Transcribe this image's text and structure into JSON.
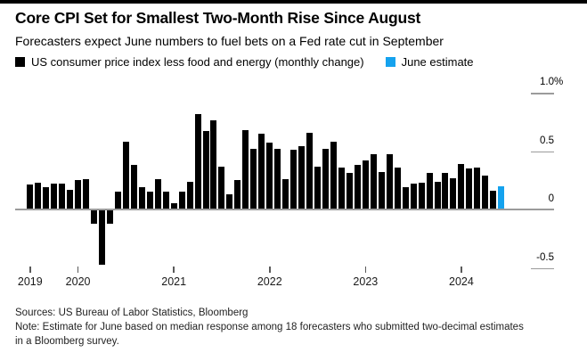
{
  "header": {
    "title": "Core CPI Set for Smallest Two-Month Rise Since August",
    "subtitle": "Forecasters expect June numbers to fuel bets on a Fed rate cut in September"
  },
  "legend": {
    "items": [
      {
        "label": "US consumer price index less food and energy (monthly change)",
        "color": "#000000"
      },
      {
        "label": "June estimate",
        "color": "#15a2ee"
      }
    ]
  },
  "chart_data": {
    "type": "bar",
    "title": "Core CPI Set for Smallest Two-Month Rise Since August",
    "subtitle": "Forecasters expect June numbers to fuel bets on a Fed rate cut in September",
    "unit": "percent, monthly change",
    "grid": "off",
    "legend_position": "top-left",
    "ylim": [
      -0.5,
      1.0
    ],
    "categories": [
      "2019-07",
      "2019-08",
      "2019-09",
      "2019-10",
      "2019-11",
      "2019-12",
      "2020-01",
      "2020-02",
      "2020-03",
      "2020-04",
      "2020-05",
      "2020-06",
      "2020-07",
      "2020-08",
      "2020-09",
      "2020-10",
      "2020-11",
      "2020-12",
      "2021-01",
      "2021-02",
      "2021-03",
      "2021-04",
      "2021-05",
      "2021-06",
      "2021-07",
      "2021-08",
      "2021-09",
      "2021-10",
      "2021-11",
      "2021-12",
      "2022-01",
      "2022-02",
      "2022-03",
      "2022-04",
      "2022-05",
      "2022-06",
      "2022-07",
      "2022-08",
      "2022-09",
      "2022-10",
      "2022-11",
      "2022-12",
      "2023-01",
      "2023-02",
      "2023-03",
      "2023-04",
      "2023-05",
      "2023-06",
      "2023-07",
      "2023-08",
      "2023-09",
      "2023-10",
      "2023-11",
      "2023-12",
      "2024-01",
      "2024-02",
      "2024-03",
      "2024-04",
      "2024-05",
      "2024-06"
    ],
    "values": [
      0.21,
      0.23,
      0.19,
      0.22,
      0.22,
      0.17,
      0.25,
      0.26,
      -0.12,
      -0.47,
      -0.12,
      0.15,
      0.58,
      0.38,
      0.19,
      0.15,
      0.26,
      0.15,
      0.05,
      0.15,
      0.24,
      0.82,
      0.67,
      0.76,
      0.37,
      0.13,
      0.25,
      0.68,
      0.52,
      0.65,
      0.57,
      0.52,
      0.26,
      0.51,
      0.54,
      0.66,
      0.37,
      0.52,
      0.58,
      0.36,
      0.31,
      0.38,
      0.42,
      0.47,
      0.32,
      0.47,
      0.36,
      0.19,
      0.22,
      0.23,
      0.31,
      0.24,
      0.31,
      0.27,
      0.39,
      0.35,
      0.36,
      0.29,
      0.16,
      0.2
    ],
    "series_names": {
      "actual": "US consumer price index less food and energy (monthly change)",
      "estimate": "June estimate"
    },
    "estimate_indices": [
      59
    ],
    "estimate_value": 0.2,
    "colors": {
      "actual": "#000000",
      "estimate": "#15a2ee",
      "axis": "#9b9b9b"
    },
    "yticks": [
      {
        "label": "1.0%",
        "value": 1.0
      },
      {
        "label": "0.5",
        "value": 0.5
      },
      {
        "label": "0",
        "value": 0
      },
      {
        "label": "-0.5",
        "value": -0.5
      }
    ],
    "xticks": [
      {
        "label": "2019",
        "month_index": 0
      },
      {
        "label": "2020",
        "month_index": 6
      },
      {
        "label": "2021",
        "month_index": 18
      },
      {
        "label": "2022",
        "month_index": 30
      },
      {
        "label": "2023",
        "month_index": 42
      },
      {
        "label": "2024",
        "month_index": 54
      }
    ]
  },
  "footer": {
    "sources": "Sources: US Bureau of Labor Statistics, Bloomberg",
    "note": "Note: Estimate for June based on median response among 18 forecasters who submitted two-decimal estimates in a Bloomberg survey."
  }
}
